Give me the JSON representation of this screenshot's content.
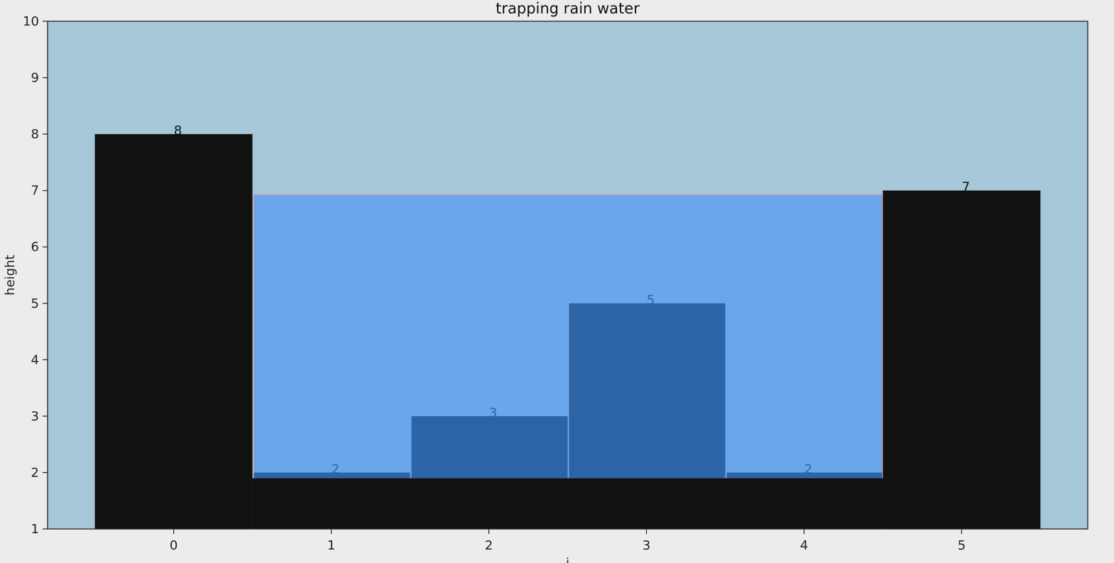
{
  "chart_data": {
    "type": "bar",
    "title": "trapping rain water",
    "xlabel": "i",
    "ylabel": "height",
    "categories": [
      "0",
      "1",
      "2",
      "3",
      "4",
      "5"
    ],
    "values": [
      8,
      2,
      3,
      5,
      2,
      7
    ],
    "xlim": [
      -0.8,
      5.8
    ],
    "ylim": [
      1,
      10
    ],
    "y_ticks": [
      1,
      2,
      3,
      4,
      5,
      6,
      7,
      8,
      9,
      10
    ],
    "water_level": 6.92,
    "water_floor": 1.9,
    "grid": false,
    "colors": {
      "plot_background": "#a7c8d9",
      "page_background": "#ececec",
      "wall_bar": "#111111",
      "inner_bar": "#2c64a6",
      "inner_label": "#2c64a6",
      "wall_label": "#111111",
      "water": "#6aa6ec",
      "water_edge": "#d98a8a"
    },
    "wall_indices": [
      0,
      5
    ]
  }
}
